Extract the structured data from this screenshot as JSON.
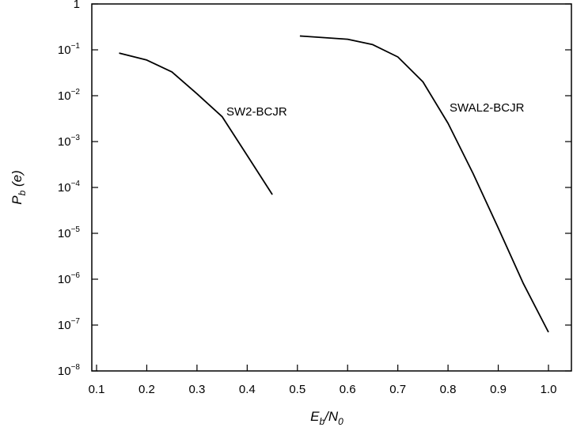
{
  "chart_data": {
    "type": "line",
    "title": "",
    "xlabel": {
      "main": "E",
      "sub": "b",
      "sep": "/N",
      "sub2": "0"
    },
    "ylabel": {
      "main": "P",
      "sub": "b",
      "rest": " (e)"
    },
    "xlim": [
      0.1,
      1.0
    ],
    "ylim_log10": [
      -8,
      0
    ],
    "yscale": "log",
    "grid": false,
    "x_ticks": [
      "0.1",
      "0.2",
      "0.3",
      "0.4",
      "0.5",
      "0.6",
      "0.7",
      "0.8",
      "0.9",
      "1.0"
    ],
    "y_ticks": [
      {
        "base": "1",
        "exp": ""
      },
      {
        "base": "10",
        "exp": "−1"
      },
      {
        "base": "10",
        "exp": "−2"
      },
      {
        "base": "10",
        "exp": "−3"
      },
      {
        "base": "10",
        "exp": "−4"
      },
      {
        "base": "10",
        "exp": "−5"
      },
      {
        "base": "10",
        "exp": "−6"
      },
      {
        "base": "10",
        "exp": "−7"
      },
      {
        "base": "10",
        "exp": "−8"
      }
    ],
    "series": [
      {
        "name": "SW2-BCJR",
        "x": [
          0.145,
          0.2,
          0.25,
          0.3,
          0.35,
          0.4,
          0.45
        ],
        "y": [
          0.085,
          0.06,
          0.033,
          0.011,
          0.0035,
          0.0005,
          7e-05
        ]
      },
      {
        "name": "SWAL2-BCJR",
        "x": [
          0.505,
          0.6,
          0.65,
          0.7,
          0.75,
          0.8,
          0.85,
          0.9,
          0.95,
          1.0
        ],
        "y": [
          0.2,
          0.17,
          0.13,
          0.07,
          0.02,
          0.0025,
          0.0002,
          1.3e-05,
          8e-07,
          7e-08
        ]
      }
    ]
  }
}
